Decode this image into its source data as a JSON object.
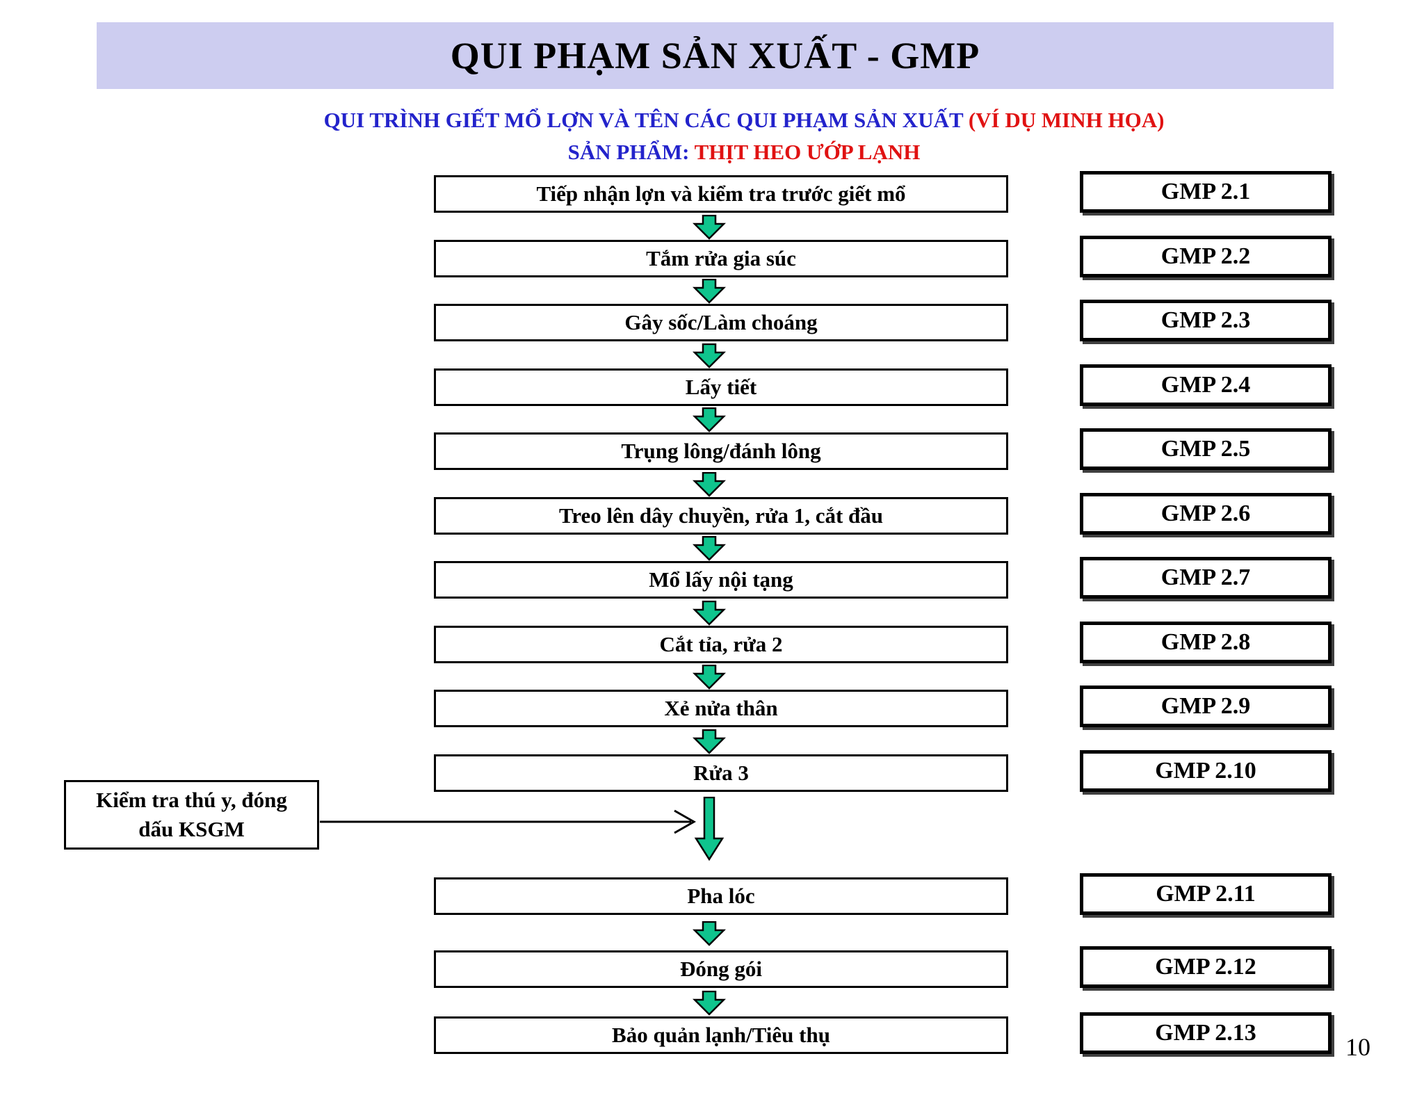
{
  "header": {
    "title": "QUI PHẠM SẢN XUẤT - GMP",
    "bg_color": "#CDCDF0"
  },
  "subtitle": {
    "line1_blue": "QUI TRÌNH GIẾT MỔ LỢN VÀ TÊN CÁC QUI PHẠM SẢN XUẤT ",
    "line1_red": "(VÍ DỤ MINH HỌA)",
    "line2_blue": "SẢN PHẨM: ",
    "line2_red": "THỊT HEO ƯỚP LẠNH",
    "blue_color": "#2323CB",
    "red_color": "#E01212"
  },
  "flow": {
    "arrow_color": "#0FC48D",
    "steps": [
      {
        "label": "Tiếp nhận lợn và kiểm tra trước giết mổ",
        "gmp": "GMP 2.1"
      },
      {
        "label": "Tắm rửa gia súc",
        "gmp": "GMP 2.2"
      },
      {
        "label": "Gây sốc/Làm choáng",
        "gmp": "GMP 2.3"
      },
      {
        "label": "Lấy tiết",
        "gmp": "GMP 2.4"
      },
      {
        "label": "Trụng lông/đánh lông",
        "gmp": "GMP 2.5"
      },
      {
        "label": "Treo lên dây chuyền, rửa 1, cắt đầu",
        "gmp": "GMP 2.6"
      },
      {
        "label": "Mổ lấy nội tạng",
        "gmp": "GMP 2.7"
      },
      {
        "label": "Cắt tỉa, rửa 2",
        "gmp": "GMP 2.8"
      },
      {
        "label": "Xẻ nửa thân",
        "gmp": "GMP 2.9"
      },
      {
        "label": "Rửa 3",
        "gmp": "GMP 2.10"
      },
      {
        "label": "Pha lóc",
        "gmp": "GMP 2.11"
      },
      {
        "label": "Đóng gói",
        "gmp": "GMP 2.12"
      },
      {
        "label": "Bảo quản lạnh/Tiêu thụ",
        "gmp": "GMP 2.13"
      }
    ]
  },
  "side_note": {
    "line1": "Kiểm tra thú y, đóng",
    "line2": "dấu KSGM"
  },
  "page": {
    "number": "10"
  }
}
